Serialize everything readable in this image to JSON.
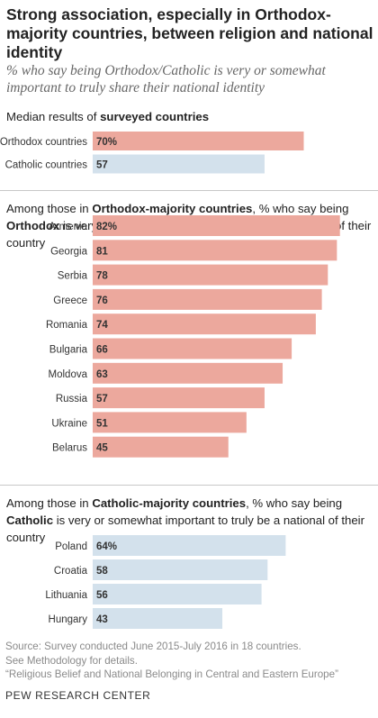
{
  "header": {
    "title": "Strong association, especially in Orthodox-majority countries, between religion and national identity",
    "subtitle": "% who say being Orthodox/Catholic is very or somewhat important to truly share their national identity"
  },
  "sections": {
    "median": {
      "pre": "Median results of ",
      "bold": "surveyed countries",
      "post": ""
    },
    "orthodox": {
      "pre": "Among those in ",
      "bold1": "Orthodox-majority countries",
      "mid": ", % who say being ",
      "bold2": "Orthodox",
      "post": " is very or somewhat important to truly be a national of their country"
    },
    "catholic": {
      "pre": "Among those in ",
      "bold1": "Catholic-majority countries",
      "mid": ", % who say being ",
      "bold2": "Catholic",
      "post": " is very or somewhat important to truly be a national of their country"
    }
  },
  "footer": {
    "source_lines": [
      "Source: Survey conducted June 2015-July 2016 in 18 countries.",
      "See Methodology for details.",
      "“Religious Belief and National Belonging in Central and Eastern Europe”"
    ],
    "brand": "PEW RESEARCH CENTER"
  },
  "colors": {
    "orthodox": "#eca89d",
    "catholic": "#d3e1ec"
  },
  "chart_data": [
    {
      "type": "bar",
      "orientation": "horizontal",
      "categories": [
        "Orthodox countries",
        "Catholic countries"
      ],
      "values": [
        70,
        57
      ],
      "labels": [
        "70%",
        "57"
      ],
      "series_colors": [
        "orthodox",
        "catholic"
      ],
      "xlim": [
        0,
        100
      ]
    },
    {
      "type": "bar",
      "orientation": "horizontal",
      "categories": [
        "Armenia",
        "Georgia",
        "Serbia",
        "Greece",
        "Romania",
        "Bulgaria",
        "Moldova",
        "Russia",
        "Ukraine",
        "Belarus"
      ],
      "values": [
        82,
        81,
        78,
        76,
        74,
        66,
        63,
        57,
        51,
        45
      ],
      "labels": [
        "82%",
        "81",
        "78",
        "76",
        "74",
        "66",
        "63",
        "57",
        "51",
        "45"
      ],
      "color": "orthodox",
      "xlim": [
        0,
        100
      ]
    },
    {
      "type": "bar",
      "orientation": "horizontal",
      "categories": [
        "Poland",
        "Croatia",
        "Lithuania",
        "Hungary"
      ],
      "values": [
        64,
        58,
        56,
        43
      ],
      "labels": [
        "64%",
        "58",
        "56",
        "43"
      ],
      "color": "catholic",
      "xlim": [
        0,
        100
      ]
    }
  ]
}
